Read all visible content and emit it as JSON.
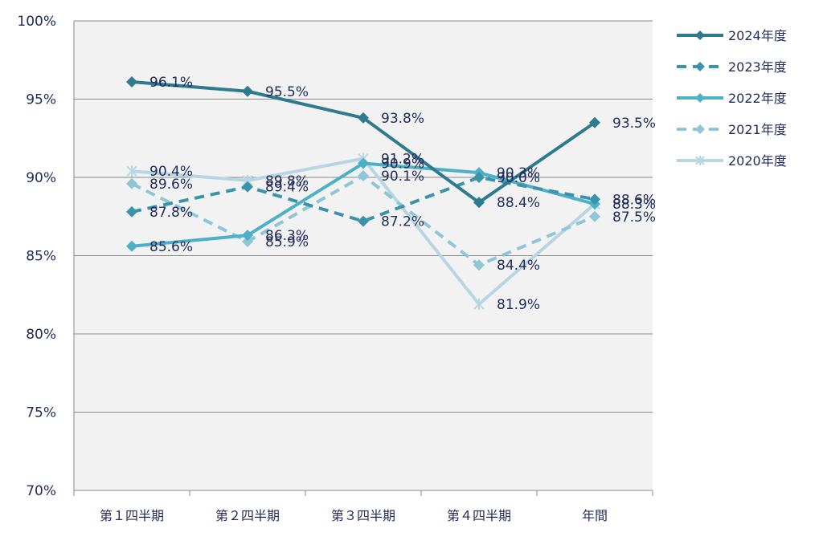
{
  "chart_data": {
    "type": "line",
    "categories": [
      "第１四半期",
      "第２四半期",
      "第３四半期",
      "第４四半期",
      "年間"
    ],
    "ylim": [
      70,
      100
    ],
    "y_ticks": [
      "70%",
      "75%",
      "80%",
      "85%",
      "90%",
      "95%",
      "100%"
    ],
    "y_tick_values": [
      70,
      75,
      80,
      85,
      90,
      95,
      100
    ],
    "grid": "horizontal",
    "plot_background": "#f2f2f2",
    "legend_position": "right",
    "series": [
      {
        "name": "2024年度",
        "values": [
          96.1,
          95.5,
          93.8,
          88.4,
          93.5
        ],
        "labels": [
          "96.1%",
          "95.5%",
          "93.8%",
          "88.4%",
          "93.5%"
        ],
        "color": "#2e7a8e",
        "dash": "solid",
        "marker": "diamond"
      },
      {
        "name": "2023年度",
        "values": [
          87.8,
          89.4,
          87.2,
          90.0,
          88.6
        ],
        "labels": [
          "87.8%",
          "89.4%",
          "87.2%",
          "90.0%",
          "88.6%"
        ],
        "color": "#3a93ab",
        "dash": "dashed",
        "marker": "diamond"
      },
      {
        "name": "2022年度",
        "values": [
          85.6,
          86.3,
          90.9,
          90.3,
          88.3
        ],
        "labels": [
          "85.6%",
          "86.3%",
          "90.9%",
          "90.3%",
          "88.3%"
        ],
        "color": "#4cb0c8",
        "dash": "solid",
        "marker": "diamond"
      },
      {
        "name": "2021年度",
        "values": [
          89.6,
          85.9,
          90.1,
          84.4,
          87.5
        ],
        "labels": [
          "89.6%",
          "85.9%",
          "90.1%",
          "84.4%",
          "87.5%"
        ],
        "color": "#8ec6d6",
        "dash": "dashed",
        "marker": "diamond"
      },
      {
        "name": "2020年度",
        "values": [
          90.4,
          89.8,
          91.2,
          81.9,
          88.3
        ],
        "labels": [
          "90.4%",
          "89.8%",
          "91.2%",
          "81.9%",
          ""
        ],
        "color": "#b8d6e2",
        "dash": "solid",
        "marker": "star"
      }
    ]
  }
}
